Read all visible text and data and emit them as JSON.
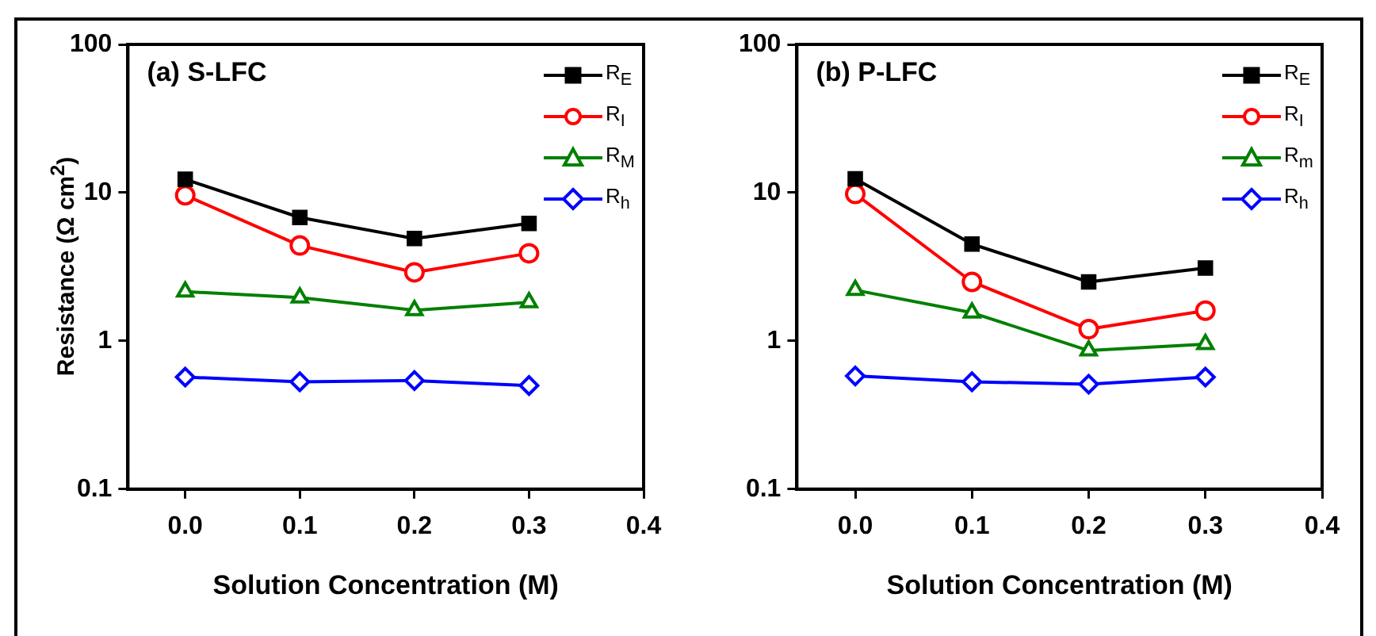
{
  "chart_data": [
    {
      "type": "line",
      "title": "(a) S-LFC",
      "xlabel": "Solution Concentration (M)",
      "ylabel": "Resistance (Ω cm$^{2}$)",
      "x": [
        0,
        0.1,
        0.2,
        0.3
      ],
      "xlim": [
        -0.05,
        0.4
      ],
      "xticks": [
        {
          "value": 0,
          "label": "0.0"
        },
        0.1,
        0.2,
        0.3,
        0.4
      ],
      "ylim": [
        0.1,
        100
      ],
      "yticks": [
        0.1,
        1,
        10,
        100
      ],
      "log": "y",
      "grid": false,
      "legend": "top right",
      "line_style": "solid",
      "series": [
        {
          "name": "R$_{E}$",
          "color": "#000000",
          "marker": "square",
          "values": [
            12.3,
            6.8,
            4.9,
            6.2
          ]
        },
        {
          "name": "R$_{I}$",
          "color": "#ff0000",
          "marker": "circle",
          "values": [
            9.6,
            4.4,
            2.9,
            3.9
          ]
        },
        {
          "name": "R$_{M}$",
          "color": "#008000",
          "marker": "triangle",
          "values": [
            2.15,
            1.96,
            1.61,
            1.82
          ]
        },
        {
          "name": "R$_{h}$",
          "color": "#0000ff",
          "marker": "diamond",
          "values": [
            0.57,
            0.53,
            0.54,
            0.5
          ]
        }
      ]
    },
    {
      "type": "line",
      "title": "(b) P-LFC",
      "xlabel": "Solution Concentration (M)",
      "x": [
        0,
        0.1,
        0.2,
        0.3
      ],
      "xlim": [
        -0.05,
        0.4
      ],
      "xticks": [
        {
          "value": 0,
          "label": "0.0"
        },
        0.1,
        0.2,
        0.3,
        0.4
      ],
      "ylim": [
        0.1,
        100
      ],
      "yticks": [
        0.1,
        1,
        10,
        100
      ],
      "log": "y",
      "grid": false,
      "legend": "top right",
      "line_style": "solid",
      "series": [
        {
          "name": "R$_{E}$",
          "color": "#000000",
          "marker": "square",
          "values": [
            12.4,
            4.5,
            2.5,
            3.1
          ]
        },
        {
          "name": "R$_{I}$",
          "color": "#ff0000",
          "marker": "circle",
          "values": [
            9.8,
            2.5,
            1.2,
            1.6
          ]
        },
        {
          "name": "R$_{m}$",
          "color": "#008000",
          "marker": "triangle",
          "values": [
            2.2,
            1.55,
            0.86,
            0.95
          ]
        },
        {
          "name": "R$_{h}$",
          "color": "#0000ff",
          "marker": "diamond",
          "values": [
            0.58,
            0.53,
            0.51,
            0.57
          ]
        }
      ]
    }
  ]
}
